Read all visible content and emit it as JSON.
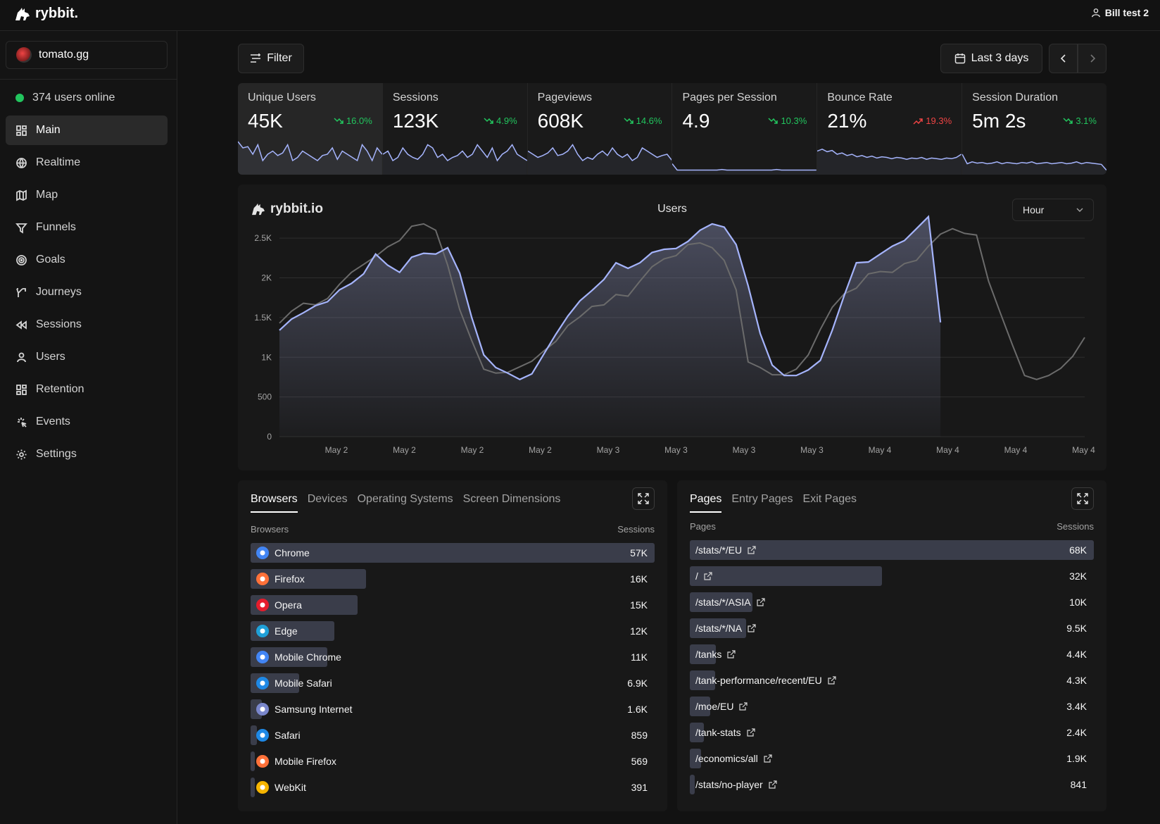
{
  "app": {
    "logo": "rybbit.",
    "user": "Bill test 2"
  },
  "site": {
    "name": "tomato.gg"
  },
  "online": "374 users online",
  "nav": [
    {
      "label": "Main",
      "icon": "grid-icon",
      "active": true
    },
    {
      "label": "Realtime",
      "icon": "globe-icon"
    },
    {
      "label": "Map",
      "icon": "map-icon"
    },
    {
      "label": "Funnels",
      "icon": "funnel-icon"
    },
    {
      "label": "Goals",
      "icon": "target-icon"
    },
    {
      "label": "Journeys",
      "icon": "split-icon"
    },
    {
      "label": "Sessions",
      "icon": "rewind-icon"
    },
    {
      "label": "Users",
      "icon": "user-icon"
    },
    {
      "label": "Retention",
      "icon": "grid-icon"
    },
    {
      "label": "Events",
      "icon": "sparkle-icon"
    },
    {
      "label": "Settings",
      "icon": "gear-icon"
    }
  ],
  "toolbar": {
    "filter": "Filter",
    "range": "Last 3 days"
  },
  "stats": [
    {
      "label": "Unique Users",
      "value": "45K",
      "change": "16.0%",
      "trend": "good",
      "spark": [
        50,
        40,
        42,
        30,
        45,
        20,
        30,
        35,
        28,
        32,
        45,
        20,
        25,
        35,
        30,
        25,
        20,
        28,
        30,
        40,
        22,
        35,
        30,
        25,
        20,
        45,
        35,
        20,
        40,
        30
      ]
    },
    {
      "label": "Sessions",
      "value": "123K",
      "change": "4.9%",
      "trend": "good",
      "spark": [
        30,
        35,
        20,
        25,
        40,
        30,
        25,
        22,
        30,
        45,
        40,
        25,
        30,
        20,
        25,
        28,
        35,
        25,
        30,
        45,
        35,
        25,
        40,
        20,
        30,
        35,
        45,
        30,
        25,
        20
      ]
    },
    {
      "label": "Pageviews",
      "value": "608K",
      "change": "14.6%",
      "trend": "good",
      "spark": [
        35,
        30,
        25,
        28,
        32,
        40,
        28,
        30,
        35,
        45,
        30,
        20,
        25,
        22,
        30,
        35,
        28,
        40,
        30,
        25,
        30,
        20,
        25,
        40,
        35,
        30,
        25,
        28,
        30,
        20
      ]
    },
    {
      "label": "Pages per Session",
      "value": "4.9",
      "change": "10.3%",
      "trend": "good",
      "spark": [
        15,
        5,
        5,
        5,
        5,
        5,
        5,
        5,
        5,
        5,
        6,
        5,
        5,
        5,
        5,
        5,
        5,
        5,
        5,
        5,
        5,
        6,
        5,
        5,
        5,
        5,
        5,
        5,
        5,
        5
      ]
    },
    {
      "label": "Bounce Rate",
      "value": "21%",
      "change": "19.3%",
      "trend": "bad",
      "spark": [
        35,
        38,
        34,
        36,
        30,
        32,
        28,
        30,
        26,
        28,
        25,
        27,
        24,
        26,
        25,
        23,
        25,
        24,
        22,
        24,
        23,
        25,
        22,
        24,
        23,
        22,
        24,
        23,
        25,
        30
      ]
    },
    {
      "label": "Session Duration",
      "value": "5m 2s",
      "change": "3.1%",
      "trend": "good",
      "spark": [
        30,
        15,
        18,
        16,
        17,
        15,
        16,
        18,
        15,
        17,
        16,
        15,
        17,
        16,
        18,
        15,
        16,
        17,
        15,
        16,
        17,
        15,
        16,
        18,
        15,
        17,
        16,
        15,
        14,
        5
      ]
    }
  ],
  "chart_data": {
    "type": "line",
    "title": "Users",
    "logo": "rybbit.io",
    "interval": "Hour",
    "ylim": [
      0,
      2750
    ],
    "yticks": [
      "0",
      "500",
      "1K",
      "1.5K",
      "2K",
      "2.5K"
    ],
    "ytick_values": [
      0,
      500,
      1000,
      1500,
      2000,
      2500
    ],
    "xticks": [
      "May 2",
      "May 2",
      "May 2",
      "May 2",
      "May 3",
      "May 3",
      "May 3",
      "May 3",
      "May 4",
      "May 4",
      "May 4",
      "May 4"
    ],
    "series": [
      {
        "name": "current",
        "values": [
          1340,
          1480,
          1560,
          1650,
          1700,
          1850,
          1930,
          2050,
          2300,
          2160,
          2070,
          2260,
          2310,
          2300,
          2380,
          2060,
          1500,
          1030,
          870,
          800,
          720,
          790,
          1040,
          1290,
          1520,
          1710,
          1840,
          1980,
          2190,
          2120,
          2190,
          2320,
          2360,
          2370,
          2460,
          2600,
          2680,
          2640,
          2420,
          1900,
          1300,
          900,
          770,
          770,
          840,
          960,
          1340,
          1780,
          2190,
          2200,
          2300,
          2400,
          2470,
          2620,
          2770,
          1440
        ]
      },
      {
        "name": "previous",
        "values": [
          1430,
          1580,
          1680,
          1660,
          1740,
          1920,
          2070,
          2170,
          2270,
          2390,
          2470,
          2650,
          2680,
          2600,
          2160,
          1600,
          1210,
          850,
          800,
          810,
          880,
          950,
          1080,
          1200,
          1400,
          1510,
          1640,
          1660,
          1790,
          1770,
          1960,
          2140,
          2240,
          2280,
          2420,
          2440,
          2380,
          2220,
          1850,
          940,
          870,
          780,
          780,
          850,
          1030,
          1350,
          1630,
          1800,
          1870,
          2050,
          2080,
          2070,
          2180,
          2220,
          2400,
          2550,
          2620,
          2560,
          2540,
          1960,
          1550,
          1150,
          770,
          720,
          770,
          860,
          1010,
          1250
        ]
      }
    ]
  },
  "browsers": {
    "tabs": [
      "Browsers",
      "Devices",
      "Operating Systems",
      "Screen Dimensions"
    ],
    "col_label": "Browsers",
    "col_value": "Sessions",
    "rows": [
      {
        "name": "Chrome",
        "value": "57K",
        "fraction": 1.0,
        "color": "#4285f4"
      },
      {
        "name": "Firefox",
        "value": "16K",
        "fraction": 0.285,
        "color": "#ff7139"
      },
      {
        "name": "Opera",
        "value": "15K",
        "fraction": 0.265,
        "color": "#e51c2c"
      },
      {
        "name": "Edge",
        "value": "12K",
        "fraction": 0.207,
        "color": "#1fa0d8"
      },
      {
        "name": "Mobile Chrome",
        "value": "11K",
        "fraction": 0.19,
        "color": "#4285f4"
      },
      {
        "name": "Mobile Safari",
        "value": "6.9K",
        "fraction": 0.12,
        "color": "#1e88e5"
      },
      {
        "name": "Samsung Internet",
        "value": "1.6K",
        "fraction": 0.028,
        "color": "#7986cb"
      },
      {
        "name": "Safari",
        "value": "859",
        "fraction": 0.015,
        "color": "#1e88e5"
      },
      {
        "name": "Mobile Firefox",
        "value": "569",
        "fraction": 0.01,
        "color": "#ff7139"
      },
      {
        "name": "WebKit",
        "value": "391",
        "fraction": 0.007,
        "color": "#f5b400"
      }
    ]
  },
  "pages": {
    "tabs": [
      "Pages",
      "Entry Pages",
      "Exit Pages"
    ],
    "col_label": "Pages",
    "col_value": "Sessions",
    "rows": [
      {
        "name": "/stats/*/EU",
        "value": "68K",
        "fraction": 1.0
      },
      {
        "name": "/",
        "value": "32K",
        "fraction": 0.475
      },
      {
        "name": "/stats/*/ASIA",
        "value": "10K",
        "fraction": 0.155
      },
      {
        "name": "/stats/*/NA",
        "value": "9.5K",
        "fraction": 0.14
      },
      {
        "name": "/tanks",
        "value": "4.4K",
        "fraction": 0.065
      },
      {
        "name": "/tank-performance/recent/EU",
        "value": "4.3K",
        "fraction": 0.063
      },
      {
        "name": "/moe/EU",
        "value": "3.4K",
        "fraction": 0.05
      },
      {
        "name": "/tank-stats",
        "value": "2.4K",
        "fraction": 0.035
      },
      {
        "name": "/economics/all",
        "value": "1.9K",
        "fraction": 0.028
      },
      {
        "name": "/stats/no-player",
        "value": "841",
        "fraction": 0.012
      }
    ]
  }
}
